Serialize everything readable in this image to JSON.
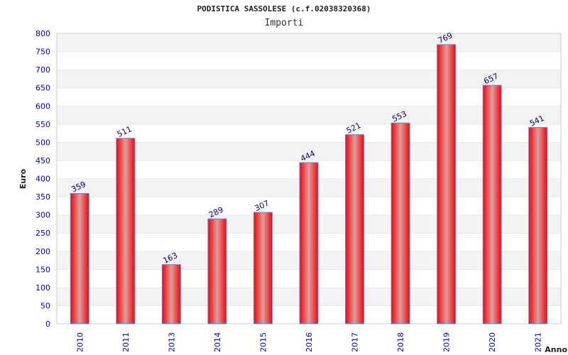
{
  "chart_data": {
    "type": "bar",
    "title": "PODISTICA SASSOLESE (c.f.02038320368)",
    "subtitle": "Importi",
    "xlabel": "Anno",
    "ylabel": "Euro",
    "ylim": [
      0,
      800
    ],
    "yticks": [
      0,
      50,
      100,
      150,
      200,
      250,
      300,
      350,
      400,
      450,
      500,
      550,
      600,
      650,
      700,
      750,
      800
    ],
    "categories": [
      "2010",
      "2011",
      "2013",
      "2014",
      "2015",
      "2016",
      "2017",
      "2018",
      "2019",
      "2020",
      "2021"
    ],
    "values": [
      359,
      511,
      163,
      289,
      307,
      444,
      521,
      553,
      769,
      657,
      541
    ],
    "colors": {
      "bar": "#ff0000",
      "bar_edge": "#3399ff",
      "tick": "#0000cc",
      "label": "#000080"
    }
  }
}
